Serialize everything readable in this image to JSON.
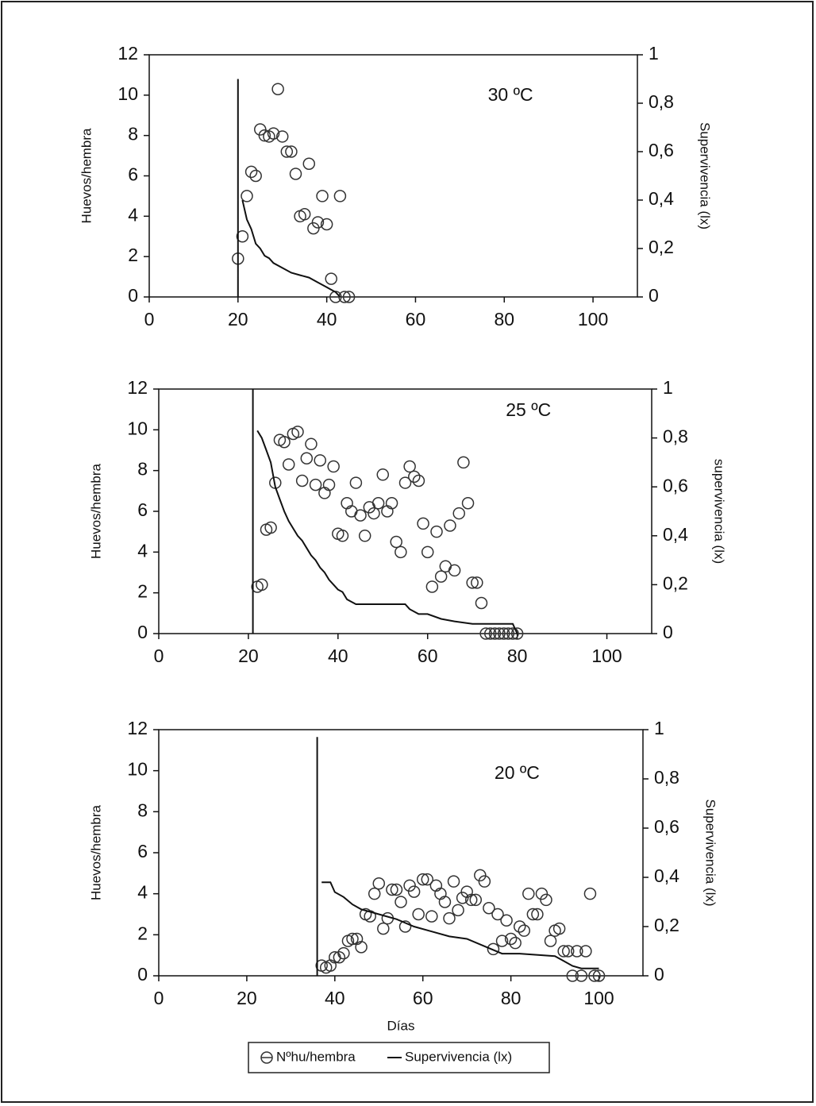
{
  "chart_data": [
    {
      "type": "scatter",
      "annotation": "30 ºC",
      "y_label": "Huevos/hembra",
      "y2_label": "Supervivencia (lx)",
      "xlim": [
        0,
        110
      ],
      "xticks": [
        0,
        20,
        40,
        60,
        80,
        100
      ],
      "ylim": [
        0,
        12
      ],
      "yticks": [
        0,
        2,
        4,
        6,
        8,
        10,
        12
      ],
      "y2lim": [
        0,
        1
      ],
      "y2ticks": [
        0,
        {
          "value": 0.2,
          "label": "0,2"
        },
        {
          "value": 0.4,
          "label": "0,4"
        },
        {
          "value": 0.6,
          "label": "0,6"
        },
        {
          "value": 0.8,
          "label": "0,8"
        },
        1
      ],
      "series": [
        {
          "mode": "markers",
          "color": "#333333",
          "x": [
            20,
            21,
            22,
            23,
            24,
            25,
            26,
            27,
            28,
            29,
            30,
            31,
            32,
            33,
            34,
            35,
            36,
            37,
            38,
            39,
            40,
            41,
            42,
            43,
            44,
            45
          ],
          "values": [
            1.9,
            3.0,
            5.0,
            6.2,
            6.0,
            8.3,
            8.0,
            7.95,
            8.1,
            10.3,
            7.95,
            7.2,
            7.2,
            6.1,
            4.0,
            4.1,
            6.6,
            3.4,
            3.7,
            5.0,
            3.6,
            0.9,
            0,
            5.0,
            0,
            0
          ]
        },
        {
          "mode": "lines",
          "axis": "y2",
          "color": "#111111",
          "x": [
            20,
            20,
            null,
            21,
            22,
            23,
            24,
            25,
            26,
            27,
            28,
            30,
            32,
            34,
            36,
            38,
            40,
            41,
            42,
            43
          ],
          "values": [
            0,
            0.9,
            null,
            0.4,
            0.32,
            0.28,
            0.22,
            0.2,
            0.17,
            0.16,
            0.14,
            0.12,
            0.1,
            0.09,
            0.08,
            0.06,
            0.04,
            0.03,
            0.02,
            0
          ]
        }
      ]
    },
    {
      "type": "scatter",
      "annotation": "25 ºC",
      "y_label": "Huevos/hembra",
      "y2_label": "supervivencia (lx)",
      "xlim": [
        0,
        110
      ],
      "xticks": [
        0,
        20,
        40,
        60,
        80,
        100
      ],
      "ylim": [
        0,
        12
      ],
      "yticks": [
        0,
        2,
        4,
        6,
        8,
        10,
        12
      ],
      "y2lim": [
        0,
        1
      ],
      "y2ticks": [
        0,
        {
          "value": 0.2,
          "label": "0,2"
        },
        {
          "value": 0.4,
          "label": "0,4"
        },
        {
          "value": 0.6,
          "label": "0,6"
        },
        {
          "value": 0.8,
          "label": "0,8"
        },
        1
      ],
      "series": [
        {
          "mode": "markers",
          "color": "#333333",
          "x": [
            22,
            23,
            24,
            25,
            26,
            27,
            28,
            29,
            30,
            31,
            32,
            33,
            34,
            35,
            36,
            37,
            38,
            39,
            40,
            41,
            42,
            43,
            44,
            45,
            46,
            47,
            48,
            49,
            50,
            51,
            52,
            53,
            54,
            55,
            56,
            57,
            58,
            59,
            60,
            61,
            62,
            63,
            64,
            65,
            66,
            67,
            68,
            69,
            70,
            71,
            72,
            73,
            74,
            75,
            76,
            77,
            78,
            79,
            80
          ],
          "values": [
            2.3,
            2.4,
            5.1,
            5.2,
            7.4,
            9.5,
            9.4,
            8.3,
            9.8,
            9.9,
            7.5,
            8.6,
            9.3,
            7.3,
            8.5,
            6.9,
            7.3,
            8.2,
            4.9,
            4.8,
            6.4,
            6.0,
            7.4,
            5.8,
            4.8,
            6.2,
            5.9,
            6.4,
            7.8,
            6.0,
            6.4,
            4.5,
            4.0,
            7.4,
            8.2,
            7.7,
            7.5,
            5.4,
            4.0,
            2.3,
            5.0,
            2.8,
            3.3,
            5.3,
            3.1,
            5.9,
            8.4,
            6.4,
            2.5,
            2.5,
            1.5,
            0,
            0,
            0,
            0,
            0,
            0,
            0,
            0
          ]
        },
        {
          "mode": "lines",
          "axis": "y2",
          "color": "#111111",
          "x": [
            21,
            21,
            null,
            22,
            23,
            24,
            25,
            26,
            27,
            28,
            29,
            30,
            31,
            32,
            33,
            34,
            35,
            36,
            37,
            38,
            39,
            40,
            41,
            42,
            43,
            44,
            50,
            55,
            56,
            58,
            60,
            63,
            66,
            70,
            75,
            79,
            80
          ],
          "values": [
            0,
            1,
            null,
            0.83,
            0.8,
            0.75,
            0.7,
            0.6,
            0.55,
            0.5,
            0.46,
            0.43,
            0.4,
            0.38,
            0.35,
            0.32,
            0.3,
            0.27,
            0.25,
            0.22,
            0.2,
            0.18,
            0.17,
            0.14,
            0.13,
            0.12,
            0.12,
            0.12,
            0.1,
            0.08,
            0.08,
            0.06,
            0.05,
            0.04,
            0.04,
            0.04,
            0
          ]
        }
      ]
    },
    {
      "type": "scatter",
      "annotation": "20 ºC",
      "y_label": "Huevos/hembra",
      "y2_label": "Supervivencia (lx)",
      "x_label": "Días",
      "xlim": [
        0,
        110
      ],
      "xticks": [
        0,
        20,
        40,
        60,
        80,
        100
      ],
      "ylim": [
        0,
        12
      ],
      "yticks": [
        0,
        2,
        4,
        6,
        8,
        10,
        12
      ],
      "y2lim": [
        0,
        1
      ],
      "y2ticks": [
        0,
        {
          "value": 0.2,
          "label": "0,2"
        },
        {
          "value": 0.4,
          "label": "0,4"
        },
        {
          "value": 0.6,
          "label": "0,6"
        },
        {
          "value": 0.8,
          "label": "0,8"
        },
        1
      ],
      "series": [
        {
          "mode": "markers",
          "color": "#333333",
          "x": [
            37,
            38,
            39,
            40,
            41,
            42,
            43,
            44,
            45,
            46,
            47,
            48,
            49,
            50,
            51,
            52,
            53,
            54,
            55,
            56,
            57,
            58,
            59,
            60,
            61,
            62,
            63,
            64,
            65,
            66,
            67,
            68,
            69,
            70,
            71,
            72,
            73,
            74,
            75,
            76,
            77,
            78,
            79,
            80,
            81,
            82,
            83,
            84,
            85,
            86,
            87,
            88,
            89,
            90,
            91,
            92,
            93,
            94,
            95,
            96,
            97,
            98,
            99,
            100
          ],
          "values": [
            0.5,
            0.4,
            0.5,
            0.9,
            0.9,
            1.1,
            1.7,
            1.8,
            1.8,
            1.4,
            3.0,
            2.9,
            4.0,
            4.5,
            2.3,
            2.8,
            4.2,
            4.2,
            3.6,
            2.4,
            4.4,
            4.1,
            3.0,
            4.7,
            4.7,
            2.9,
            4.4,
            4.0,
            3.6,
            2.8,
            4.6,
            3.2,
            3.8,
            4.1,
            3.7,
            3.7,
            4.9,
            4.6,
            3.3,
            1.3,
            3.0,
            1.7,
            2.7,
            1.8,
            1.6,
            2.4,
            2.2,
            4.0,
            3.0,
            3.0,
            4.0,
            3.7,
            1.7,
            2.2,
            2.3,
            1.2,
            1.2,
            0,
            1.2,
            0,
            1.2,
            4.0,
            0,
            0
          ]
        },
        {
          "mode": "lines",
          "axis": "y2",
          "color": "#111111",
          "x": [
            36,
            36,
            null,
            37,
            39,
            40,
            42,
            44,
            46,
            48,
            50,
            54,
            58,
            62,
            66,
            70,
            74,
            78,
            82,
            90,
            92,
            94,
            96,
            100
          ],
          "values": [
            0,
            0.97,
            null,
            0.38,
            0.38,
            0.34,
            0.32,
            0.29,
            0.27,
            0.26,
            0.25,
            0.23,
            0.2,
            0.18,
            0.16,
            0.15,
            0.12,
            0.09,
            0.09,
            0.08,
            0.06,
            0.04,
            0.03,
            0.03
          ]
        }
      ]
    }
  ],
  "legend": {
    "items": [
      "Nºhu/hembra",
      "Supervivencia (lx)"
    ]
  }
}
